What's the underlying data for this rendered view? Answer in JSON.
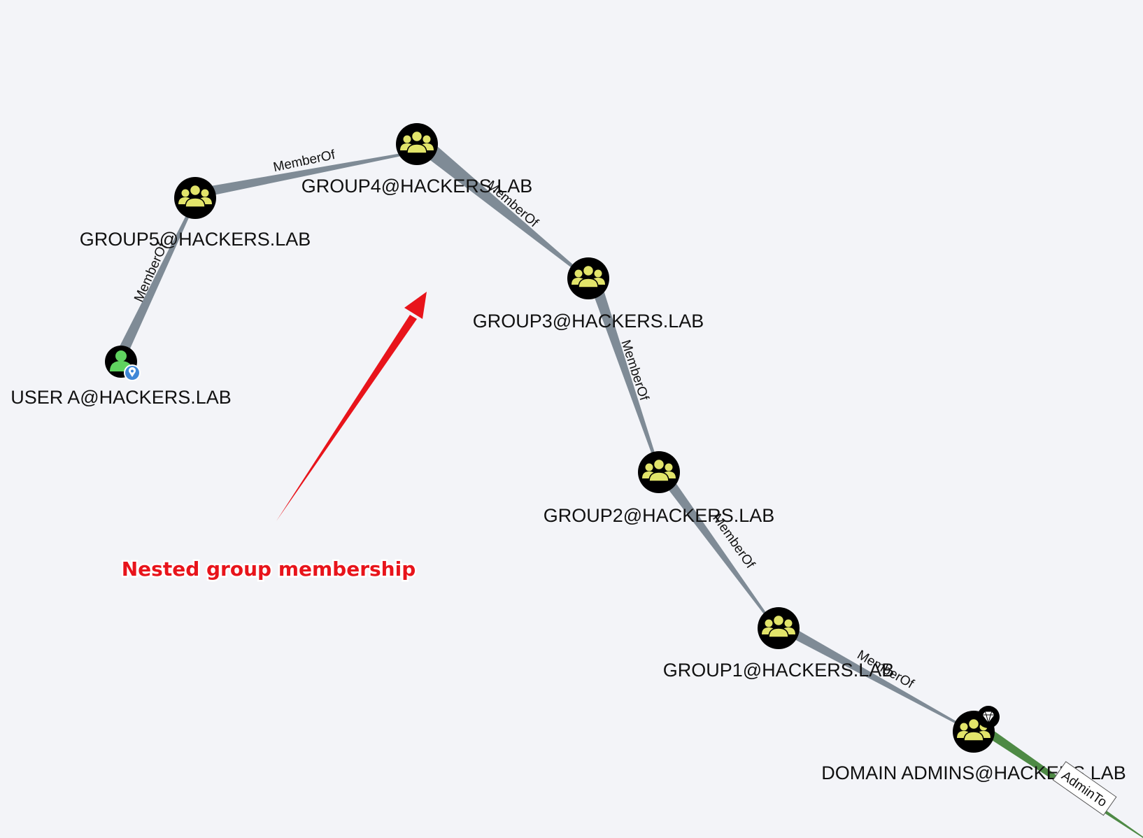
{
  "graph": {
    "nodes": {
      "user_a": {
        "label": "USER A@HACKERS.LAB",
        "icon": "user-icon",
        "badge": "owned-location-badge"
      },
      "group5": {
        "label": "GROUP5@HACKERS.LAB",
        "icon": "group-icon"
      },
      "group4": {
        "label": "GROUP4@HACKERS.LAB",
        "icon": "group-icon"
      },
      "group3": {
        "label": "GROUP3@HACKERS.LAB",
        "icon": "group-icon"
      },
      "group2": {
        "label": "GROUP2@HACKERS.LAB",
        "icon": "group-icon"
      },
      "group1": {
        "label": "GROUP1@HACKERS.LAB",
        "icon": "group-icon"
      },
      "domain_admins": {
        "label": "DOMAIN ADMINS@HACKERS.LAB",
        "icon": "group-icon",
        "badge": "high-value-diamond-badge"
      }
    },
    "edges": [
      {
        "id": "e1",
        "from": "user_a",
        "to": "group5",
        "label": "MemberOf"
      },
      {
        "id": "e2",
        "from": "group5",
        "to": "group4",
        "label": "MemberOf"
      },
      {
        "id": "e3",
        "from": "group4",
        "to": "group3",
        "label": "MemberOf"
      },
      {
        "id": "e4",
        "from": "group3",
        "to": "group2",
        "label": "MemberOf"
      },
      {
        "id": "e5",
        "from": "group2",
        "to": "group1",
        "label": "MemberOf"
      },
      {
        "id": "e6",
        "from": "group1",
        "to": "domain_admins",
        "label": "MemberOf"
      },
      {
        "id": "e7",
        "from": "domain_admins",
        "to": "",
        "label": "AdminTo"
      }
    ],
    "annotation": {
      "text": "Nested group membership"
    },
    "colors": {
      "background": "#f3f4f8",
      "edge": "#7f8b96",
      "admin_edge": "#4e8a45",
      "node_fill": "#000000",
      "group_icon": "#e2e46a",
      "user_icon": "#5fd35f",
      "annotation": "#e8141b"
    }
  }
}
